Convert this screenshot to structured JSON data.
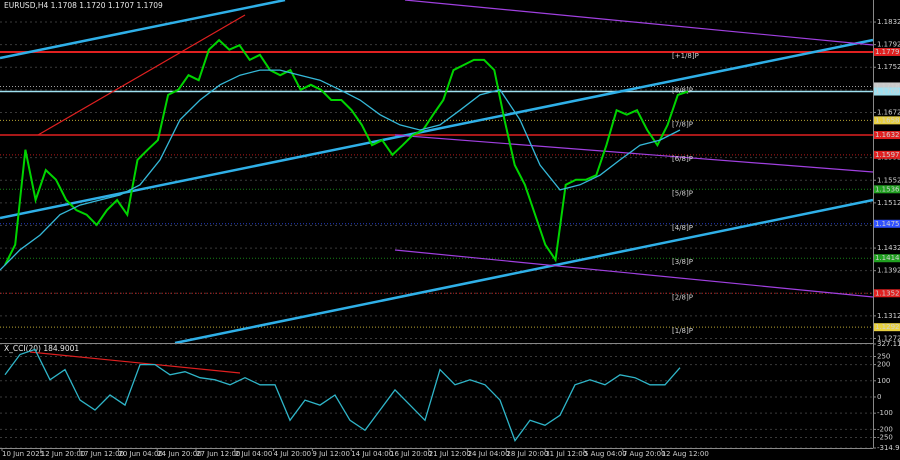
{
  "chart_data": [
    {
      "type": "line",
      "title": "EURUSD,H4  1.1708 1.1720 1.1707 1.1709",
      "series": [
        {
          "color": "#00d400",
          "values": [
            1.1402,
            1.1438,
            1.1606,
            1.1517,
            1.157,
            1.1553,
            1.1517,
            1.1499,
            1.1491,
            1.1473,
            1.1499,
            1.1517,
            1.1491,
            1.1588,
            1.1606,
            1.1623,
            1.1703,
            1.1712,
            1.1738,
            1.1729,
            1.1783,
            1.18,
            1.1783,
            1.1791,
            1.1765,
            1.1774,
            1.1747,
            1.1738,
            1.1747,
            1.1712,
            1.1721,
            1.1712,
            1.1694,
            1.1694,
            1.1676,
            1.165,
            1.1614,
            1.1623,
            1.1597,
            1.1614,
            1.1632,
            1.1641,
            1.1668,
            1.1694,
            1.1747,
            1.1756,
            1.1765,
            1.1765,
            1.1747,
            1.1659,
            1.1579,
            1.1544,
            1.1491,
            1.1438,
            1.1411,
            1.1544,
            1.1553,
            1.1553,
            1.1561,
            1.1614,
            1.1676,
            1.1668,
            1.1676,
            1.1641,
            1.1614,
            1.165,
            1.1703,
            1.1709
          ]
        },
        {
          "color": "#35b8d8",
          "values": [
            1.1393,
            1.1429,
            1.1455,
            1.1491,
            1.1508,
            1.1517,
            1.1526,
            1.1544,
            1.1588,
            1.1659,
            1.1694,
            1.1721,
            1.1738,
            1.1747,
            1.1747,
            1.1738,
            1.1729,
            1.1712,
            1.1694,
            1.1668,
            1.165,
            1.1641,
            1.165,
            1.1676,
            1.1703,
            1.1712,
            1.1659,
            1.1579,
            1.1535,
            1.1544,
            1.1561,
            1.1588,
            1.1614,
            1.1623,
            1.1641
          ]
        }
      ],
      "ylim": [
        1.1264,
        1.1871
      ],
      "yticks": [
        1.1832,
        1.1792,
        1.1752,
        1.1712,
        1.1672,
        1.1632,
        1.1592,
        1.1552,
        1.1512,
        1.1472,
        1.1432,
        1.1392,
        1.1352,
        1.1312,
        1.1272
      ],
      "grid": true,
      "levels": [
        {
          "label": "[+1/8]P",
          "value": 1.1779,
          "color": "#e02020"
        },
        {
          "label": "[8/8]P",
          "value": 1.1718,
          "color": "#c8c8c8"
        },
        {
          "label": "[7/8]P",
          "value": 1.1658,
          "color": "#e8d040"
        },
        {
          "label": "[6/8]P",
          "value": 1.1597,
          "color": "#e02020"
        },
        {
          "label": "[5/8]P",
          "value": 1.1536,
          "color": "#20a020"
        },
        {
          "label": "[4/8]P",
          "value": 1.1475,
          "color": "#3050ff"
        },
        {
          "label": "[3/8]P",
          "value": 1.1414,
          "color": "#20a020"
        },
        {
          "label": "[2/8]P",
          "value": 1.1352,
          "color": "#e02020"
        },
        {
          "label": "[1/8]P",
          "value": 1.1292,
          "color": "#e8d040"
        }
      ],
      "marked_prices": [
        {
          "value": 1.1632,
          "color": "#e02020"
        },
        {
          "value": 1.1709,
          "color": "#9fe0f0"
        }
      ],
      "time_labels": [
        "10 Jun 2025",
        "12 Jun 20:00",
        "17 Jun 12:00",
        "20 Jun 04:00",
        "24 Jun 20:00",
        "27 Jun 12:00",
        "2 Jul 04:00",
        "4 Jul 20:00",
        "9 Jul 12:00",
        "14 Jul 04:00",
        "16 Jul 20:00",
        "21 Jul 12:00",
        "24 Jul 04:00",
        "28 Jul 20:00",
        "31 Jul 12:00",
        "5 Aug 04:00",
        "7 Aug 20:00",
        "12 Aug 12:00"
      ]
    },
    {
      "type": "line",
      "title": "X_CCI(20) 184.9001",
      "series": [
        {
          "color": "#2fb5c8",
          "values": [
            137,
            262,
            294,
            106,
            169,
            -19,
            -81,
            12,
            -50,
            200,
            200,
            137,
            156,
            119,
            106,
            75,
            119,
            75,
            75,
            -144,
            -19,
            -50,
            12,
            -144,
            -206,
            -81,
            44,
            -50,
            -144,
            169,
            75,
            106,
            75,
            -19,
            -269,
            -144,
            -175,
            -113,
            75,
            106,
            75,
            137,
            119,
            75,
            75,
            181
          ]
        }
      ],
      "ylim": [
        -314.975,
        327.116
      ],
      "yticks": [
        327.116,
        250,
        200,
        100,
        0,
        -100,
        -200,
        -250,
        -314.975
      ],
      "grid": true
    }
  ]
}
